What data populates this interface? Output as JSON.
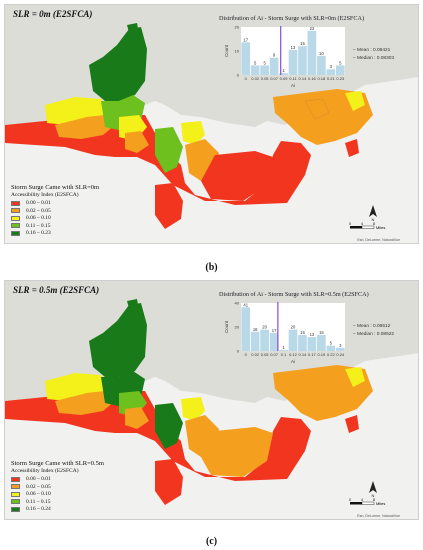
{
  "colors": {
    "water": "#f1f1f0",
    "land": "#ddddd8",
    "c1": "#f2351f",
    "c2": "#f59f1e",
    "c3": "#f4f01a",
    "c4": "#6dc01d",
    "c5": "#187a18",
    "hist": "#b9d8e8",
    "median": "#8a4bd0"
  },
  "panels": [
    {
      "id": "b",
      "slr_title": "SLR = 0m (E2SFCA)",
      "hist_title": "Distribution of Ai - Storm Surge with SLR=0m (E2SFCA)",
      "y_axis_label": "Count",
      "x_axis_label": "Ai",
      "y_ticks": [
        "20",
        "10",
        "0"
      ],
      "x_ticks": [
        "0",
        "0.02",
        "0.05",
        "0.07",
        "0.09",
        "0.11",
        "0.14",
        "0.16",
        "0.18",
        "0.21",
        "0.23"
      ],
      "bars": [
        17,
        5,
        5,
        9,
        1,
        13,
        15,
        23,
        10,
        3,
        5
      ],
      "ylim": [
        0,
        25
      ],
      "median_bin": 4.2,
      "mean_label": "Mean : 0.08421",
      "median_label": "Median : 0.08303",
      "legend_title": "Storm Surge Came with SLR=0m",
      "legend_sub": "Accessibility Index (E2SFCA)",
      "legend": [
        "0.00 – 0.01",
        "0.02 – 0.05",
        "0.06 – 0.10",
        "0.11 – 0.15",
        "0.16 – 0.23"
      ],
      "panel_label": "(b)"
    },
    {
      "id": "c",
      "slr_title": "SLR = 0.5m (E2SFCA)",
      "hist_title": "Distribution of Ai - Storm Surge with SLR=0.5m (E2SFCA)",
      "y_axis_label": "Count",
      "x_axis_label": "Ai",
      "y_ticks": [
        "40",
        "20",
        "0"
      ],
      "x_ticks": [
        "0",
        "0.02",
        "0.05",
        "0.07",
        "0.1",
        "0.12",
        "0.14",
        "0.17",
        "0.19",
        "0.22",
        "0.24"
      ],
      "bars": [
        41,
        18,
        20,
        17,
        1,
        20,
        15,
        13,
        15,
        5,
        3
      ],
      "ylim": [
        0,
        45
      ],
      "median_bin": 3.9,
      "mean_label": "Mean : 0.08512",
      "median_label": "Median : 0.08522",
      "legend_title": "Storm Surge Came with SLR=0.5m",
      "legend_sub": "Accessibility Index (E2SFCA)",
      "legend": [
        "0.00 – 0.01",
        "0.02 – 0.05",
        "0.06 – 0.10",
        "0.11 – 0.15",
        "0.16 – 0.24"
      ],
      "panel_label": "(c)"
    }
  ],
  "scale": {
    "ticks": [
      "0",
      "4",
      "8"
    ],
    "unit": "Miles",
    "north": "N"
  },
  "credit": "Esri, DeLorme, NaturalVue"
}
